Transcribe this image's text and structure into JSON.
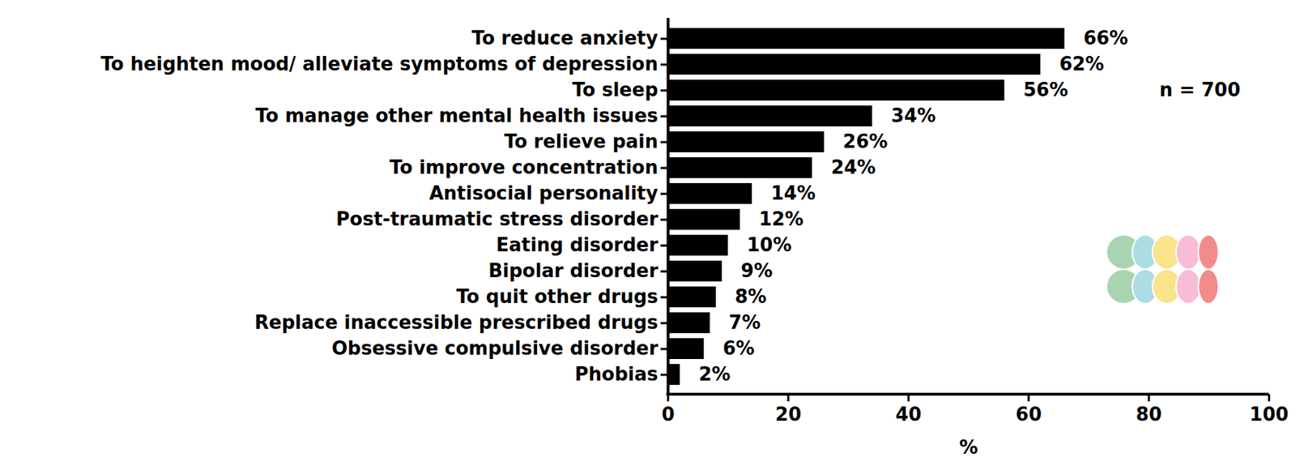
{
  "chart_data": {
    "type": "bar",
    "orientation": "horizontal",
    "categories": [
      "To reduce anxiety",
      "To heighten mood/ alleviate symptoms of depression",
      "To sleep",
      "To manage other mental health issues",
      "To relieve pain",
      "To improve concentration",
      "Antisocial personality",
      "Post-traumatic stress disorder",
      "Eating disorder",
      "Bipolar disorder",
      "To quit other drugs",
      "Replace inaccessible prescribed drugs",
      "Obsessive compulsive disorder",
      "Phobias"
    ],
    "values": [
      66,
      62,
      56,
      34,
      26,
      24,
      14,
      12,
      10,
      9,
      8,
      7,
      6,
      2
    ],
    "value_labels": [
      "66%",
      "62%",
      "56%",
      "34%",
      "26%",
      "24%",
      "14%",
      "12%",
      "10%",
      "9%",
      "8%",
      "7%",
      "6%",
      "2%"
    ],
    "data_labels": true,
    "color": "#000000",
    "x_label": "%",
    "xlim": [
      0,
      100
    ],
    "xticks": [
      0,
      20,
      40,
      60,
      80,
      100
    ],
    "grid": false,
    "annotations": [
      "n = 700"
    ]
  }
}
